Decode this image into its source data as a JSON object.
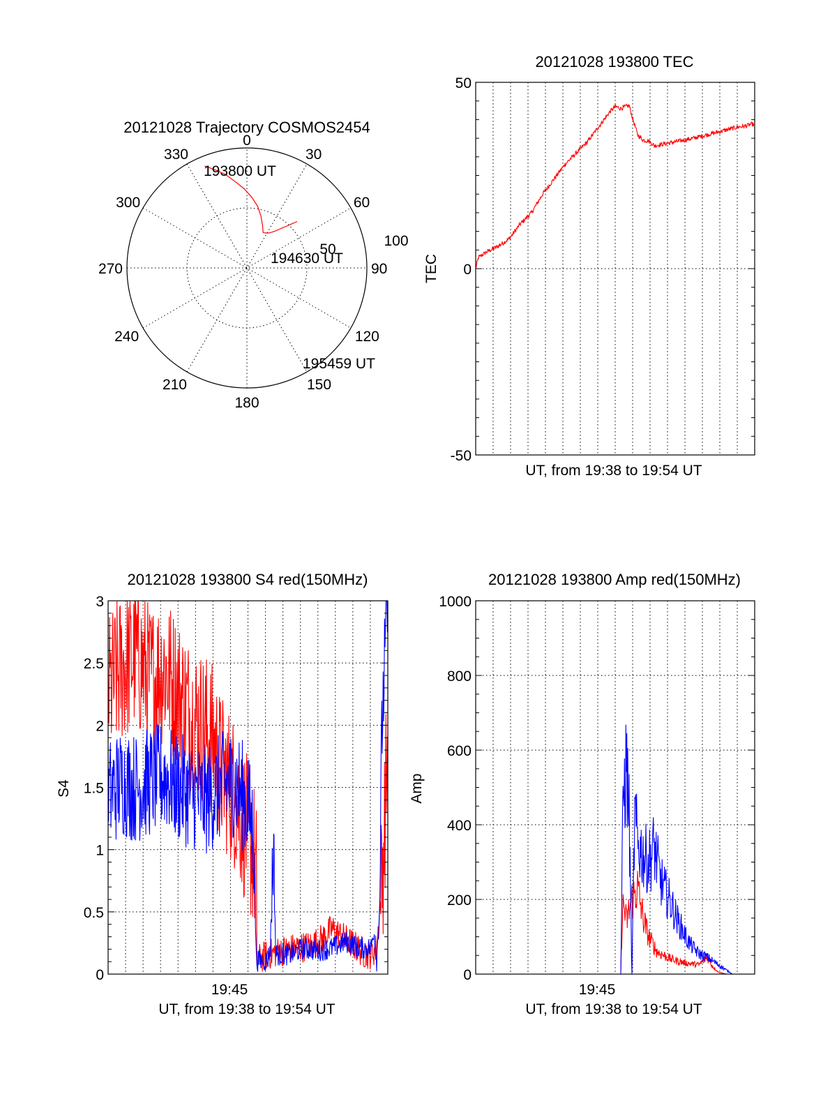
{
  "chart_data": [
    {
      "type": "polar",
      "title": "20121028 Trajectory COSMOS2454",
      "angle_labels": [
        "0",
        "30",
        "60",
        "90",
        "120",
        "150",
        "180",
        "210",
        "240",
        "270",
        "300",
        "330"
      ],
      "radius_labels": [
        "50",
        "100"
      ],
      "rlim": [
        0,
        100
      ],
      "trajectory": {
        "color": "#ff0000",
        "azimuth": [
          -22.5,
          -18,
          -13,
          -8,
          -2,
          4,
          10,
          15,
          20,
          24.5,
          27,
          30,
          32.8,
          35.2,
          37.5,
          39.6,
          41.6,
          43.6,
          45.5,
          47.3
        ],
        "zenith": [
          92,
          86,
          80,
          73,
          66,
          59,
          52,
          45,
          38,
          32.5,
          32.8,
          33.5,
          34.8,
          36.6,
          38.8,
          41.5,
          44.6,
          48.2,
          52.4,
          57
        ]
      },
      "annotations": [
        "193800 UT",
        "194630 UT",
        "195459 UT"
      ]
    },
    {
      "type": "line",
      "title": "20121028 193800 TEC",
      "xlabel": "UT, from 19:38 to 19:54 UT",
      "ylabel": "TEC",
      "ylim": [
        -50,
        50
      ],
      "yticks": [
        "-50",
        "0",
        "50"
      ],
      "xlim": [
        0,
        1
      ],
      "series": [
        {
          "name": "TEC",
          "color": "#ff0000",
          "x": [
            0,
            0.01,
            0.04,
            0.08,
            0.12,
            0.16,
            0.2,
            0.24,
            0.28,
            0.32,
            0.36,
            0.4,
            0.44,
            0.48,
            0.5,
            0.52,
            0.55,
            0.56,
            0.58,
            0.6,
            0.62,
            0.64,
            0.7,
            0.78,
            0.86,
            0.94,
            0.97,
            0.99,
            1.0
          ],
          "y": [
            0,
            3,
            4.5,
            6,
            8,
            12,
            15,
            20,
            24,
            28,
            31,
            34,
            38,
            42,
            43.5,
            43,
            43.8,
            41,
            36,
            34.5,
            34.3,
            33,
            33.8,
            35,
            36.5,
            38,
            38.3,
            38.8,
            38.5
          ]
        }
      ]
    },
    {
      "type": "line",
      "title": "20121028 193800 S4 red(150MHz)",
      "xlabel": "UT, from 19:38 to 19:54 UT",
      "ylabel": "S4",
      "ylim": [
        0,
        3
      ],
      "yticks": [
        "0",
        "0.5",
        "1",
        "1.5",
        "2",
        "2.5",
        "3"
      ],
      "xticks": [
        "19:45"
      ],
      "xlim": [
        0,
        1
      ],
      "series": [
        {
          "name": "red (150MHz)",
          "color": "#ff0000",
          "x": [
            0,
            0.05,
            0.1,
            0.15,
            0.2,
            0.25,
            0.3,
            0.35,
            0.38,
            0.4,
            0.45,
            0.48,
            0.5,
            0.52,
            0.53,
            0.53,
            0.58,
            0.63,
            0.68,
            0.73,
            0.77,
            0.8,
            0.83,
            0.86,
            0.89,
            0.92,
            0.94,
            0.96,
            0.98,
            1.0
          ],
          "y": [
            2.2,
            2.4,
            2.5,
            2.3,
            2.4,
            2.2,
            2.0,
            1.9,
            1.8,
            1.6,
            1.4,
            1.2,
            1.05,
            0.9,
            0.7,
            0.1,
            0.15,
            0.18,
            0.2,
            0.22,
            0.28,
            0.35,
            0.3,
            0.25,
            0.2,
            0.15,
            0.15,
            0.2,
            0.7,
            1.8
          ]
        },
        {
          "name": "blue",
          "color": "#0000ff",
          "x": [
            0,
            0.05,
            0.1,
            0.15,
            0.2,
            0.25,
            0.3,
            0.35,
            0.4,
            0.45,
            0.48,
            0.5,
            0.52,
            0.53,
            0.54,
            0.57,
            0.58,
            0.59,
            0.6,
            0.65,
            0.7,
            0.75,
            0.8,
            0.85,
            0.9,
            0.94,
            0.95,
            0.96,
            0.97,
            0.98,
            1.0
          ],
          "y": [
            1.4,
            1.5,
            1.45,
            1.5,
            1.55,
            1.45,
            1.4,
            1.35,
            1.45,
            1.5,
            1.4,
            1.3,
            1.1,
            0.1,
            0.1,
            0.1,
            0.2,
            1.0,
            0.15,
            0.15,
            0.2,
            0.18,
            0.2,
            0.25,
            0.2,
            0.2,
            0.35,
            0.1,
            0.5,
            2.0,
            3.0
          ]
        }
      ]
    },
    {
      "type": "line",
      "title": "20121028 193800 Amp red(150MHz)",
      "xlabel": "UT, from 19:38 to 19:54 UT",
      "ylabel": "Amp",
      "ylim": [
        0,
        1000
      ],
      "yticks": [
        "0",
        "200",
        "400",
        "600",
        "800",
        "1000"
      ],
      "xticks": [
        "19:45"
      ],
      "xlim": [
        0,
        1
      ],
      "series": [
        {
          "name": "red (150MHz)",
          "color": "#ff0000",
          "x": [
            0,
            0.52,
            0.525,
            0.53,
            0.54,
            0.56,
            0.58,
            0.6,
            0.62,
            0.65,
            0.7,
            0.75,
            0.8,
            0.83,
            0.85,
            0.87,
            0.9,
            1.0
          ],
          "y": [
            0,
            0,
            150,
            190,
            140,
            200,
            230,
            150,
            100,
            60,
            40,
            30,
            25,
            45,
            20,
            5,
            0,
            0
          ]
        },
        {
          "name": "blue",
          "color": "#0000ff",
          "x": [
            0,
            0.52,
            0.525,
            0.53,
            0.54,
            0.545,
            0.55,
            0.56,
            0.57,
            0.58,
            0.6,
            0.62,
            0.64,
            0.66,
            0.68,
            0.7,
            0.72,
            0.74,
            0.76,
            0.78,
            0.8,
            0.83,
            0.86,
            0.9,
            0.92,
            1.0
          ],
          "y": [
            0,
            0,
            300,
            480,
            560,
            500,
            420,
            0,
            420,
            350,
            320,
            300,
            340,
            260,
            220,
            190,
            150,
            120,
            90,
            70,
            55,
            45,
            30,
            10,
            0,
            0
          ]
        }
      ]
    }
  ]
}
